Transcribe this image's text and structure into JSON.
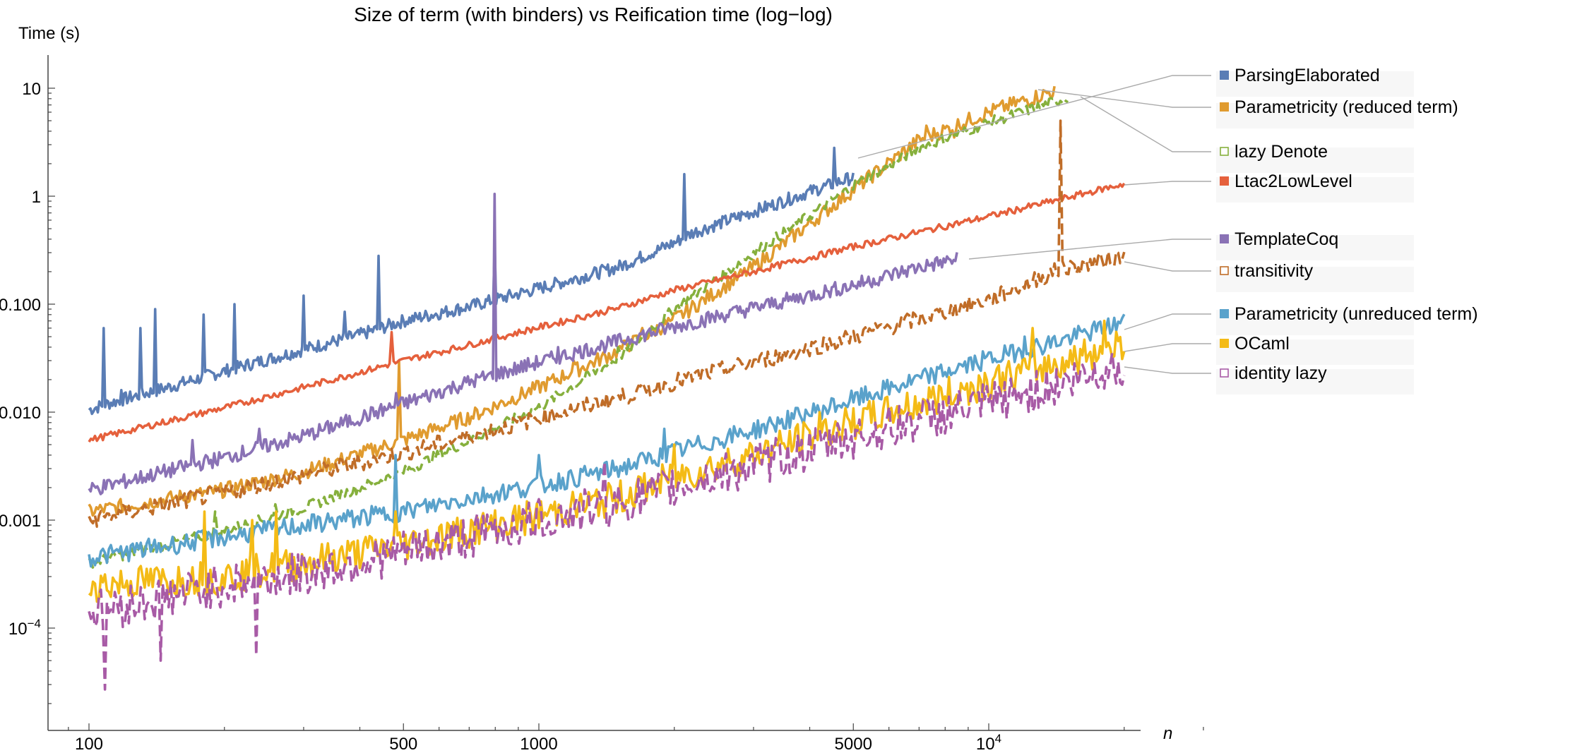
{
  "chart_data": {
    "type": "line",
    "title": "Size of term (with binders) vs Reification time (log−log)",
    "xlabel": "n",
    "ylabel": "Time (s)",
    "x_scale": "log",
    "y_scale": "log",
    "xlim": [
      75,
      36000
    ],
    "ylim": [
      9e-06,
      30
    ],
    "x_ticks": [
      {
        "value": 100,
        "label": "100"
      },
      {
        "value": 500,
        "label": "500"
      },
      {
        "value": 1000,
        "label": "1000"
      },
      {
        "value": 5000,
        "label": "5000"
      },
      {
        "value": 10000,
        "label": "10",
        "sup": "4"
      }
    ],
    "y_ticks": [
      {
        "value": 10,
        "label": "10"
      },
      {
        "value": 1,
        "label": "1"
      },
      {
        "value": 0.1,
        "label": "0.100"
      },
      {
        "value": 0.01,
        "label": "0.010"
      },
      {
        "value": 0.001,
        "label": "0.001"
      },
      {
        "value": 0.0001,
        "label": "10",
        "sup": "−4"
      }
    ],
    "grid": false,
    "legend_position": "right",
    "series": [
      {
        "name": "ParsingElaborated",
        "color": "#5a7db5",
        "dashed": false,
        "marker": "filled",
        "x": [
          100,
          110,
          150,
          200,
          300,
          400,
          500,
          700,
          1000,
          1500,
          2000,
          2200,
          3000,
          4000,
          5000
        ],
        "y": [
          0.0105,
          0.012,
          0.017,
          0.024,
          0.038,
          0.052,
          0.07,
          0.095,
          0.14,
          0.22,
          0.37,
          0.46,
          0.72,
          1.1,
          1.5
        ],
        "spikes": [
          [
            108,
            0.06
          ],
          [
            118,
            0.016
          ],
          [
            130,
            0.06
          ],
          [
            140,
            0.09
          ],
          [
            180,
            0.08
          ],
          [
            210,
            0.1
          ],
          [
            300,
            0.12
          ],
          [
            370,
            0.085
          ],
          [
            440,
            0.28
          ],
          [
            800,
            0.35
          ],
          [
            2100,
            1.6
          ],
          [
            4550,
            2.8
          ]
        ]
      },
      {
        "name": "Parametricity (reduced term)",
        "color": "#e09b2f",
        "dashed": false,
        "marker": "filled",
        "x": [
          100,
          200,
          300,
          500,
          700,
          1000,
          1500,
          2000,
          3000,
          4000,
          5000,
          7000,
          10000,
          14000
        ],
        "y": [
          0.0012,
          0.0019,
          0.0028,
          0.0055,
          0.009,
          0.017,
          0.037,
          0.072,
          0.22,
          0.56,
          1.15,
          3.3,
          6.0,
          9.5
        ],
        "spikes": [
          [
            490,
            0.03
          ],
          [
            1200,
            0.03
          ],
          [
            1500,
            0.04
          ],
          [
            1700,
            0.06
          ],
          [
            1950,
            0.07
          ],
          [
            7300,
            4.5
          ],
          [
            8400,
            3.5
          ]
        ]
      },
      {
        "name": "lazy Denote",
        "color": "#86b03d",
        "dashed": true,
        "marker": "open",
        "x": [
          100,
          200,
          300,
          500,
          700,
          1000,
          1500,
          2000,
          3000,
          4000,
          5000,
          7000,
          10000,
          15000
        ],
        "y": [
          0.0004,
          0.0008,
          0.0013,
          0.0028,
          0.0055,
          0.011,
          0.032,
          0.09,
          0.3,
          0.66,
          1.25,
          2.8,
          4.8,
          8.2
        ],
        "spikes": [
          [
            190,
            0.0012
          ],
          [
            260,
            0.0014
          ],
          [
            900,
            0.009
          ],
          [
            1500,
            0.04
          ]
        ]
      },
      {
        "name": "Ltac2LowLevel",
        "color": "#e5603c",
        "dashed": false,
        "marker": "filled",
        "x": [
          100,
          200,
          300,
          500,
          700,
          1000,
          1500,
          2000,
          3000,
          5000,
          10000,
          20000
        ],
        "y": [
          0.0055,
          0.011,
          0.017,
          0.03,
          0.042,
          0.061,
          0.092,
          0.135,
          0.2,
          0.34,
          0.65,
          1.3
        ],
        "spikes": [
          [
            470,
            0.055
          ]
        ]
      },
      {
        "name": "TemplateCoq",
        "color": "#8a72b5",
        "dashed": false,
        "marker": "filled",
        "x": [
          100,
          200,
          300,
          500,
          700,
          1000,
          1500,
          2000,
          3000,
          5000,
          7000,
          8500
        ],
        "y": [
          0.0019,
          0.0038,
          0.006,
          0.012,
          0.019,
          0.029,
          0.045,
          0.062,
          0.092,
          0.15,
          0.22,
          0.26
        ],
        "spikes": [
          [
            170,
            0.0055
          ],
          [
            240,
            0.007
          ],
          [
            480,
            0.015
          ],
          [
            800,
            1.05
          ],
          [
            1100,
            0.04
          ]
        ]
      },
      {
        "name": "transitivity",
        "color": "#c06d28",
        "dashed": true,
        "marker": "open",
        "x": [
          100,
          200,
          300,
          500,
          700,
          1000,
          1500,
          2000,
          3000,
          5000,
          10000,
          14000,
          20000
        ],
        "y": [
          0.001,
          0.0018,
          0.0026,
          0.0042,
          0.006,
          0.0088,
          0.0135,
          0.019,
          0.029,
          0.05,
          0.11,
          0.2,
          0.28
        ],
        "spikes": [
          [
            14500,
            5.0
          ],
          [
            14600,
            0.25
          ]
        ]
      },
      {
        "name": "Parametricity (unreduced term)",
        "color": "#5aa2cb",
        "dashed": false,
        "marker": "filled",
        "x": [
          100,
          200,
          300,
          500,
          700,
          1000,
          1500,
          2000,
          3000,
          5000,
          7000,
          10000,
          15000,
          20000
        ],
        "y": [
          0.00045,
          0.0007,
          0.0009,
          0.0012,
          0.0016,
          0.0021,
          0.003,
          0.0043,
          0.0068,
          0.013,
          0.02,
          0.031,
          0.048,
          0.068
        ],
        "spikes": [
          [
            480,
            0.004
          ],
          [
            1000,
            0.004
          ],
          [
            1900,
            0.007
          ],
          [
            4200,
            0.01
          ],
          [
            12000,
            0.05
          ]
        ]
      },
      {
        "name": "OCaml",
        "color": "#f4bb16",
        "dashed": false,
        "marker": "filled",
        "x": [
          100,
          200,
          300,
          500,
          700,
          1000,
          1500,
          2000,
          3000,
          5000,
          7000,
          10000,
          15000,
          20000
        ],
        "y": [
          0.00025,
          0.0003,
          0.0004,
          0.0006,
          0.0008,
          0.0011,
          0.0016,
          0.0025,
          0.004,
          0.008,
          0.012,
          0.019,
          0.03,
          0.045
        ],
        "spikes": [
          [
            180,
            0.0012
          ],
          [
            230,
            0.001
          ],
          [
            260,
            0.0012
          ],
          [
            480,
            0.0012
          ],
          [
            2000,
            0.005
          ],
          [
            4200,
            0.01
          ],
          [
            12500,
            0.06
          ],
          [
            18000,
            0.07
          ]
        ]
      },
      {
        "name": "identity lazy",
        "color": "#a85ba6",
        "dashed": true,
        "marker": "open",
        "x": [
          100,
          200,
          300,
          500,
          700,
          1000,
          1500,
          2000,
          3000,
          5000,
          7000,
          10000,
          15000,
          20000
        ],
        "y": [
          0.00014,
          0.00025,
          0.00032,
          0.0005,
          0.0007,
          0.001,
          0.0014,
          0.002,
          0.0032,
          0.0058,
          0.0085,
          0.012,
          0.019,
          0.028
        ],
        "spikes": [
          [
            108,
            2.7e-05
          ],
          [
            145,
            5e-05
          ],
          [
            235,
            5.6e-05
          ],
          [
            1400,
            0.0035
          ],
          [
            4500,
            0.006
          ]
        ]
      }
    ]
  },
  "legend_order": [
    0,
    1,
    2,
    3,
    4,
    5,
    6,
    7,
    8
  ]
}
